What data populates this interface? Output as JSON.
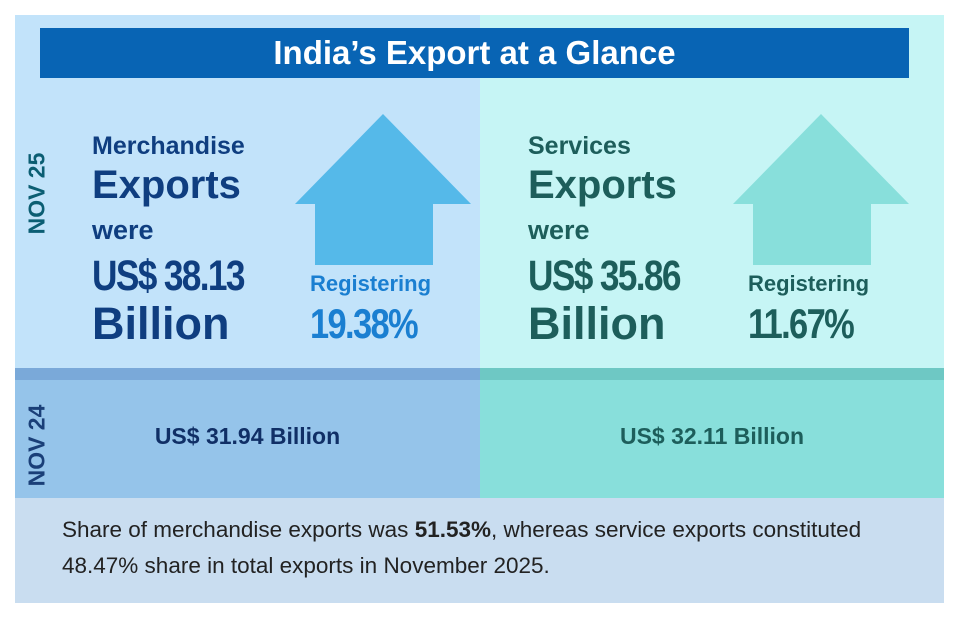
{
  "title": "India’s Export at a Glance",
  "period_current": "NOV 25",
  "period_previous": "NOV 24",
  "merchandise": {
    "line1": "Merchandise",
    "line2": "Exports",
    "line3": "were",
    "amount": "US$ 38.13",
    "unit": "Billion",
    "registering_label": "Registering",
    "growth": "19.38%",
    "previous": "US$ 31.94 Billion"
  },
  "services": {
    "line1": "Services",
    "line2": "Exports",
    "line3": "were",
    "amount": "US$ 35.86",
    "unit": "Billion",
    "registering_label": "Registering",
    "growth": "11.67%",
    "previous": "US$ 32.11 Billion"
  },
  "footer": {
    "part1": "Share of merchandise exports was ",
    "bold": "51.53%",
    "part2": ", whereas service exports constituted 48.47% share in total exports in November 2025."
  },
  "colors": {
    "title_bar": "#0864b4",
    "merch_arrow": "#55b9e9",
    "services_arrow": "#88dfdb",
    "merch_text": "#0f3e80",
    "services_text": "#1d5e5b"
  },
  "icons": [
    "up-arrow-icon",
    "up-arrow-icon"
  ]
}
